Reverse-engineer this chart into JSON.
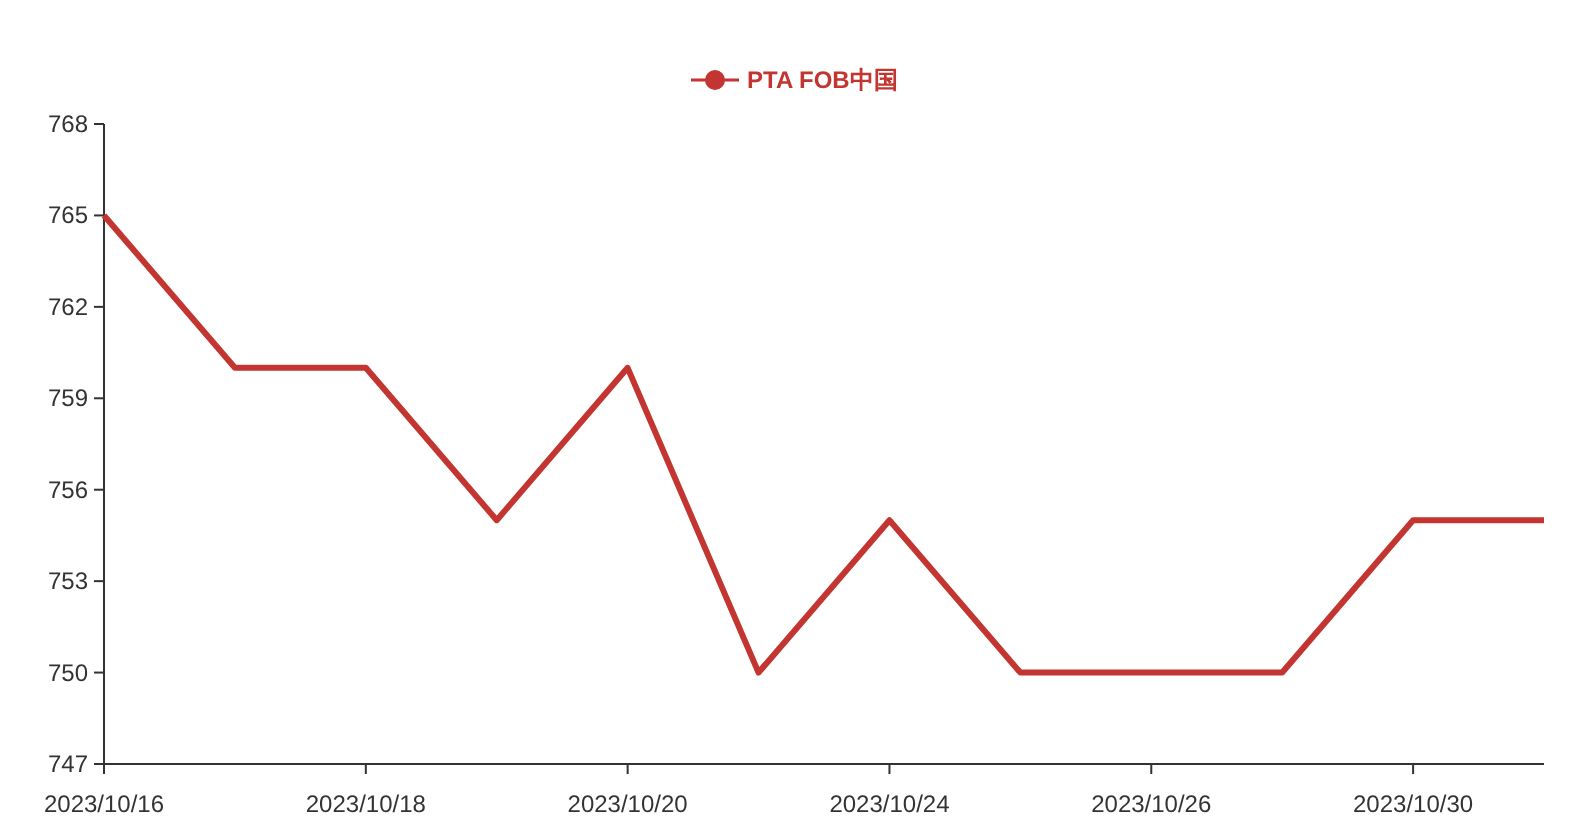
{
  "chart_data": {
    "type": "line",
    "categories": [
      "2023/10/16",
      null,
      "2023/10/18",
      null,
      "2023/10/20",
      null,
      "2023/10/24",
      null,
      "2023/10/26",
      null,
      "2023/10/30",
      null
    ],
    "series": [
      {
        "name": "PTA FOB中国",
        "color": "#c23531",
        "values": [
          765,
          760,
          760,
          755,
          760,
          750,
          755,
          750,
          750,
          750,
          755,
          755
        ]
      }
    ],
    "ylim": [
      747,
      768
    ],
    "yticks": [
      747,
      750,
      753,
      756,
      759,
      762,
      765,
      768
    ],
    "grid": false,
    "legend": "top",
    "line_style": "solid"
  }
}
